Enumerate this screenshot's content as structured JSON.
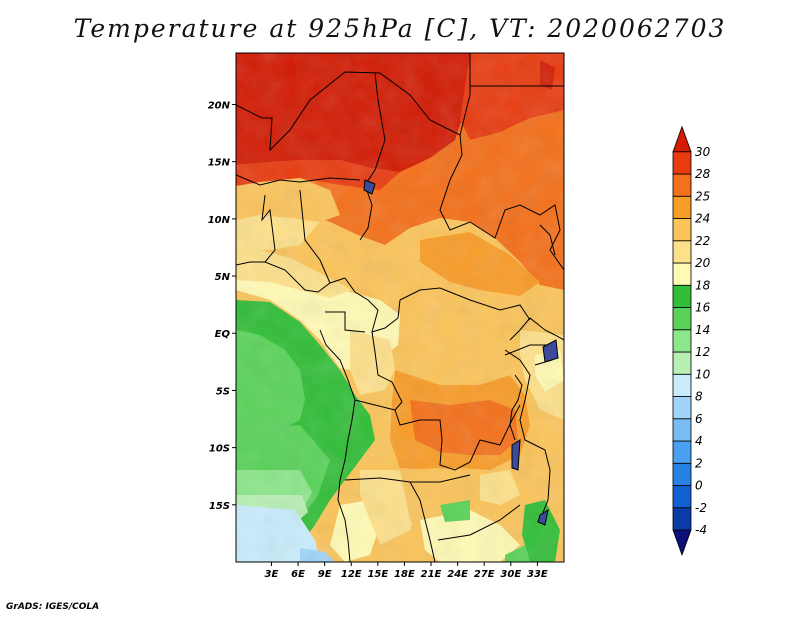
{
  "title": "Temperature at 925hPa [C], VT: 2020062703",
  "footer": "GrADS: IGES/COLA",
  "map": {
    "lon_range": [
      -1.0,
      36.0
    ],
    "lat_range": [
      -20.0,
      24.5
    ],
    "lon_ticks": [
      {
        "value": 3,
        "label": "3E"
      },
      {
        "value": 6,
        "label": "6E"
      },
      {
        "value": 9,
        "label": "9E"
      },
      {
        "value": 12,
        "label": "12E"
      },
      {
        "value": 15,
        "label": "15E"
      },
      {
        "value": 18,
        "label": "18E"
      },
      {
        "value": 21,
        "label": "21E"
      },
      {
        "value": 24,
        "label": "24E"
      },
      {
        "value": 27,
        "label": "27E"
      },
      {
        "value": 30,
        "label": "30E"
      },
      {
        "value": 33,
        "label": "33E"
      }
    ],
    "lat_ticks": [
      {
        "value": 20,
        "label": "20N"
      },
      {
        "value": 15,
        "label": "15N"
      },
      {
        "value": 10,
        "label": "10N"
      },
      {
        "value": 5,
        "label": "5N"
      },
      {
        "value": 0,
        "label": "EQ"
      },
      {
        "value": -5,
        "label": "5S"
      },
      {
        "value": -10,
        "label": "10S"
      },
      {
        "value": -15,
        "label": "15S"
      }
    ]
  },
  "colorbar": {
    "levels": [
      "-4",
      "-2",
      "0",
      "2",
      "4",
      "6",
      "8",
      "10",
      "12",
      "14",
      "16",
      "18",
      "20",
      "22",
      "24",
      "25",
      "28",
      "30"
    ],
    "colors": [
      "#0c0f78",
      "#0a3ca8",
      "#1060d0",
      "#2882e6",
      "#4aa0f0",
      "#78bcf4",
      "#a0d4f8",
      "#c8ecfc",
      "#b8f0b4",
      "#8ce68a",
      "#5ad25a",
      "#32be38",
      "#fffab4",
      "#fde08a",
      "#fbc45a",
      "#f89c28",
      "#f4701a",
      "#e83c10",
      "#d21c04"
    ]
  }
}
